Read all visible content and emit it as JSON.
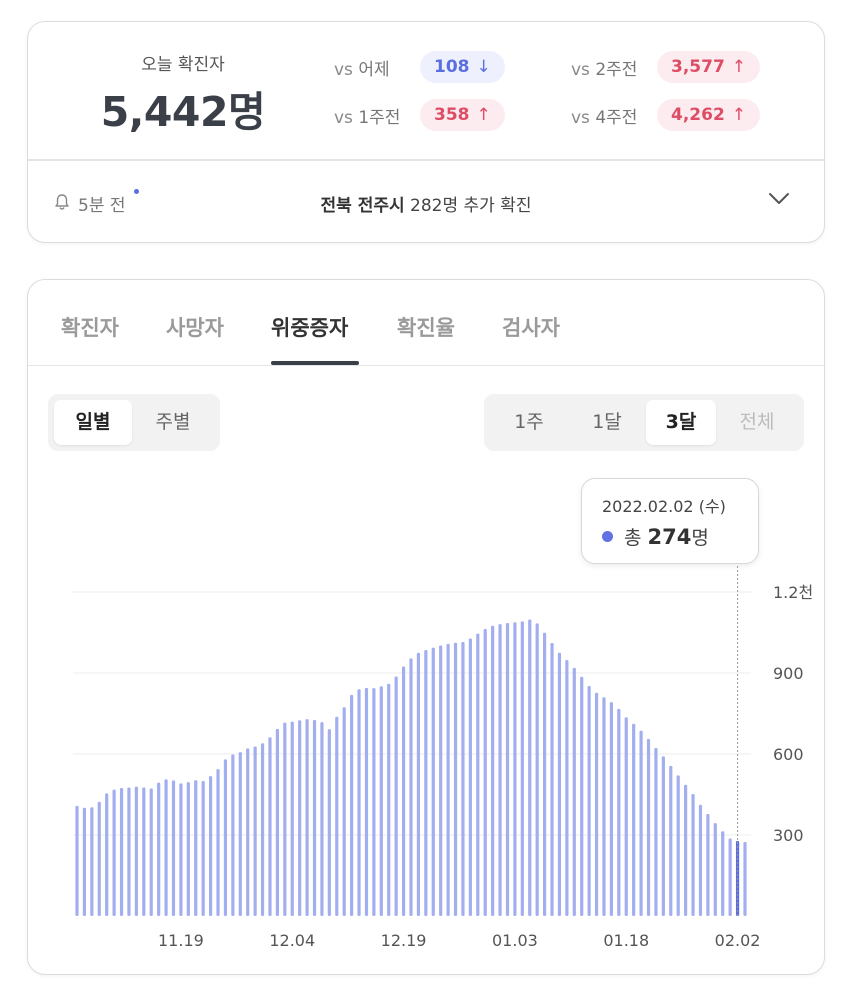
{
  "summary": {
    "today_label": "오늘 확진자",
    "today_value": "5,442명",
    "comparisons": [
      {
        "vs": "vs",
        "label": "어제",
        "value": "108",
        "direction": "down",
        "arrow": "↓"
      },
      {
        "vs": "vs",
        "label": "2주전",
        "value": "3,577",
        "direction": "up",
        "arrow": "↑"
      },
      {
        "vs": "vs",
        "label": "1주전",
        "value": "358",
        "direction": "up",
        "arrow": "↑"
      },
      {
        "vs": "vs",
        "label": "4주전",
        "value": "4,262",
        "direction": "up",
        "arrow": "↑"
      }
    ],
    "update": {
      "icon": "bell-icon",
      "time_ago": "5분 전",
      "region": "전북 전주시",
      "message": " 282명 추가 확진",
      "expand_icon": "chevron-down-icon"
    }
  },
  "tabs": [
    "확진자",
    "사망자",
    "위중증자",
    "확진율",
    "검사자"
  ],
  "active_tab": "위중증자",
  "period_toggle": {
    "options": [
      "일별",
      "주별"
    ],
    "active": "일별"
  },
  "range_toggle": {
    "options": [
      "1주",
      "1달",
      "3달",
      "전체"
    ],
    "active": "3달",
    "disabled": [
      "전체"
    ]
  },
  "tooltip": {
    "date": "2022.02.02 (수)",
    "prefix": "총 ",
    "value": "274",
    "unit": "명"
  },
  "colors": {
    "bar": "#a3aeee",
    "bar_highlight": "#5a6ee0",
    "up": "#de4d66",
    "down": "#5a6ee0"
  },
  "chart_data": {
    "type": "bar",
    "title": "",
    "xlabel": "",
    "ylabel": "",
    "ylim": [
      0,
      1200
    ],
    "y_ticks": [
      {
        "value": 300,
        "label": "300"
      },
      {
        "value": 600,
        "label": "600"
      },
      {
        "value": 900,
        "label": "900"
      },
      {
        "value": 1200,
        "label": "1.2천"
      }
    ],
    "x_tick_labels": [
      {
        "index": 14,
        "label": "11.19"
      },
      {
        "index": 29,
        "label": "12.04"
      },
      {
        "index": 44,
        "label": "12.19"
      },
      {
        "index": 59,
        "label": "01.03"
      },
      {
        "index": 74,
        "label": "01.18"
      },
      {
        "index": 89,
        "label": "02.02"
      }
    ],
    "highlight_index": 89,
    "grid": true,
    "values": [
      408,
      401,
      403,
      423,
      454,
      468,
      474,
      476,
      479,
      476,
      472,
      494,
      506,
      502,
      491,
      496,
      503,
      500,
      518,
      544,
      580,
      598,
      607,
      621,
      628,
      640,
      662,
      693,
      716,
      720,
      725,
      729,
      726,
      718,
      692,
      738,
      773,
      819,
      840,
      845,
      844,
      851,
      860,
      887,
      924,
      954,
      975,
      985,
      994,
      1002,
      1008,
      1012,
      1015,
      1028,
      1046,
      1063,
      1075,
      1081,
      1085,
      1088,
      1091,
      1098,
      1084,
      1049,
      1011,
      975,
      948,
      919,
      886,
      852,
      827,
      810,
      792,
      767,
      736,
      712,
      686,
      656,
      622,
      591,
      556,
      521,
      486,
      452,
      412,
      378,
      344,
      314,
      287,
      278,
      274
    ]
  }
}
